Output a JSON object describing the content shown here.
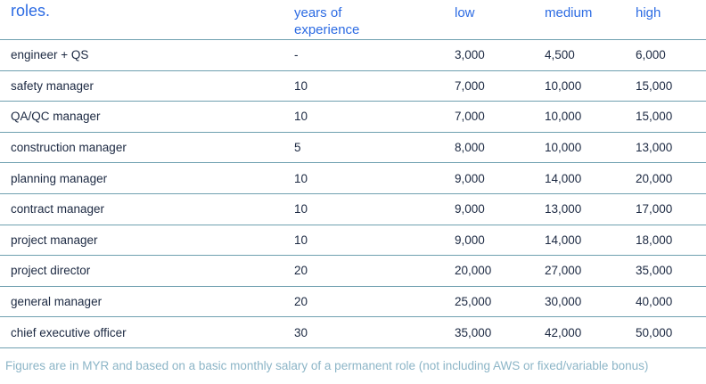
{
  "table": {
    "columns": {
      "role": "roles.",
      "experience": "years of experience",
      "low": "low",
      "medium": "medium",
      "high": "high"
    },
    "rows": [
      {
        "role": "engineer + QS",
        "experience": "-",
        "low": "3,000",
        "medium": "4,500",
        "high": "6,000"
      },
      {
        "role": "safety manager",
        "experience": "10",
        "low": "7,000",
        "medium": "10,000",
        "high": "15,000"
      },
      {
        "role": "QA/QC manager",
        "experience": "10",
        "low": "7,000",
        "medium": "10,000",
        "high": "15,000"
      },
      {
        "role": "construction manager",
        "experience": "5",
        "low": "8,000",
        "medium": "10,000",
        "high": "13,000"
      },
      {
        "role": "planning manager",
        "experience": "10",
        "low": "9,000",
        "medium": "14,000",
        "high": "20,000"
      },
      {
        "role": "contract manager",
        "experience": "10",
        "low": "9,000",
        "medium": "13,000",
        "high": "17,000"
      },
      {
        "role": "project manager",
        "experience": "10",
        "low": "9,000",
        "medium": "14,000",
        "high": "18,000"
      },
      {
        "role": "project director",
        "experience": "20",
        "low": "20,000",
        "medium": "27,000",
        "high": "35,000"
      },
      {
        "role": "general manager",
        "experience": "20",
        "low": "25,000",
        "medium": "30,000",
        "high": "40,000"
      },
      {
        "role": "chief executive officer",
        "experience": "30",
        "low": "35,000",
        "medium": "42,000",
        "high": "50,000"
      }
    ]
  },
  "footnote": "Figures are in MYR and based on a basic monthly salary of a permanent role (not including AWS or fixed/variable bonus)",
  "colors": {
    "header_blue": "#2c6be3",
    "body_navy": "#1c2942",
    "divider_teal": "#6fa0b0",
    "footnote_blue": "#8cb5c7"
  }
}
